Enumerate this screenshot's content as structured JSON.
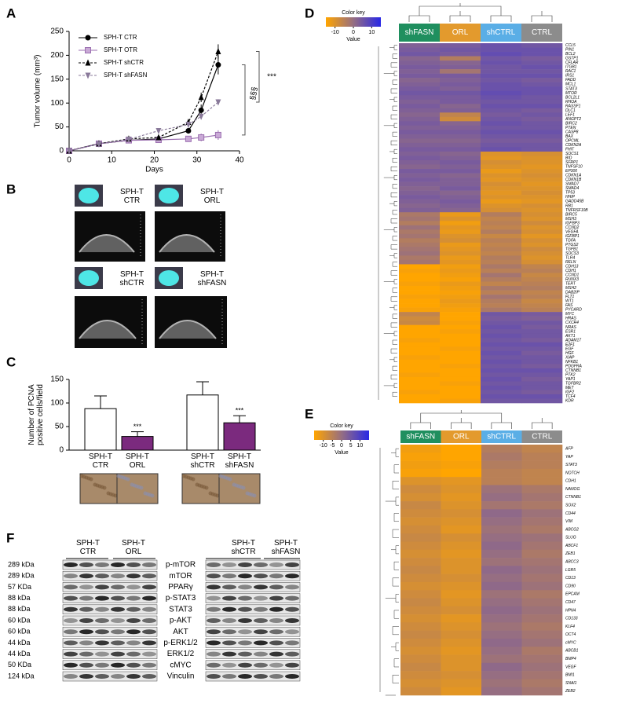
{
  "panel_labels": [
    "A",
    "B",
    "C",
    "D",
    "E",
    "F"
  ],
  "chart_data": [
    {
      "type": "line",
      "x_label": "Days",
      "y_label": "Tumor volume (mm³)",
      "x": [
        0,
        7,
        14,
        21,
        28,
        31,
        35
      ],
      "series": [
        {
          "name": "SPH-T CTR",
          "color": "#000000",
          "marker": "circle",
          "dash": false,
          "values": [
            0,
            15,
            22,
            25,
            42,
            85,
            180
          ],
          "errors": [
            0,
            3,
            4,
            4,
            6,
            12,
            20
          ]
        },
        {
          "name": "SPH-T OTR",
          "color": "#9b6fb0",
          "marker": "square",
          "dash": false,
          "values": [
            0,
            15,
            22,
            23,
            25,
            28,
            33
          ],
          "errors": [
            0,
            3,
            4,
            4,
            5,
            8,
            10
          ]
        },
        {
          "name": "SPH-T shCTR",
          "color": "#000000",
          "marker": "triangle",
          "dash": true,
          "values": [
            0,
            15,
            25,
            28,
            60,
            112,
            208
          ],
          "errors": [
            0,
            3,
            4,
            4,
            6,
            10,
            15
          ]
        },
        {
          "name": "SPH-T shFASN",
          "color": "#8a7a9a",
          "marker": "triangle-down",
          "dash": true,
          "values": [
            0,
            14,
            24,
            42,
            55,
            72,
            102
          ],
          "errors": [
            0,
            3,
            4,
            4,
            5,
            6,
            6
          ]
        }
      ],
      "xlim": [
        0,
        40
      ],
      "xticks": [
        0,
        10,
        20,
        30,
        40
      ],
      "ylim": [
        0,
        250
      ],
      "yticks": [
        0,
        50,
        100,
        150,
        200,
        250
      ],
      "annotations": [
        "§§§",
        "***"
      ]
    },
    {
      "type": "bar",
      "y_label": "Number of PCNA\npositive cells/field",
      "categories": [
        "SPH-T\nCTR",
        "SPH-T\nORL",
        "SPH-T\nshCTR",
        "SPH-T\nshFASN"
      ],
      "values": [
        88,
        29,
        117,
        58
      ],
      "errors": [
        27,
        10,
        28,
        15
      ],
      "colors": [
        "#ffffff",
        "#7b2a7e",
        "#ffffff",
        "#7b2a7e"
      ],
      "significance": [
        null,
        "***",
        null,
        "***"
      ],
      "ylim": [
        0,
        150
      ],
      "yticks": [
        0,
        50,
        100,
        150
      ]
    },
    {
      "type": "heatmap",
      "title": "Color key",
      "legend_label": "Value",
      "clim": [
        -15,
        15
      ],
      "colorbar_ticks": [
        -10,
        0,
        10
      ],
      "columns": [
        "shFASN",
        "ORL",
        "shCTRL",
        "CTRL"
      ],
      "column_colors": [
        "#1f8f5f",
        "#e39a2d",
        "#5aaee6",
        "#8c8c8c"
      ],
      "rows": [
        "CCL5",
        "PIN1",
        "BCL2",
        "GSTP1",
        "CFLAR",
        "ITGB1",
        "RAC1",
        "IRS1",
        "FADD",
        "MCL1",
        "STAT3",
        "MTOR",
        "BCL2L1",
        "RHOA",
        "RASSF1",
        "DLC1",
        "LEF1",
        "ANGPT2",
        "BIRC2",
        "PTEN",
        "CASP8",
        "BAX",
        "OPCML",
        "CDKN2A",
        "FHIT",
        "SOCS1",
        "BID",
        "SFRP1",
        "TNFSF10",
        "EP300",
        "CDKN1A",
        "CDKN1B",
        "SMAD7",
        "SMAD4",
        "TP53",
        "HHIP",
        "GADD45B",
        "RB1",
        "TNFRSF10B",
        "BIRC5",
        "MSH3",
        "IGFBP3",
        "CCND2",
        "VEGFA",
        "IGFBP1",
        "TGFA",
        "PTGS2",
        "TGFB1",
        "SOCS3",
        "TLR4",
        "RELN",
        "CDH13",
        "CDH1",
        "CCND1",
        "RUNX3",
        "TERT",
        "MSH2",
        "DAB2IP",
        "FLT1",
        "WT1",
        "FAS",
        "PYCARD",
        "MYC",
        "HRAS",
        "CXCR4",
        "NRAS",
        "ESR1",
        "AKT1",
        "ADAM17",
        "E2F1",
        "EGF",
        "HGF",
        "XIAP",
        "NFKB1",
        "PDGFRA",
        "CTNNB1",
        "PTK2",
        "YAP1",
        "TGFBR2",
        "MET",
        "IGF2",
        "TCF4",
        "KDR"
      ],
      "values": [
        [
          3,
          4,
          6,
          5
        ],
        [
          4,
          5,
          6,
          6
        ],
        [
          5,
          4,
          7,
          6
        ],
        [
          2,
          -4,
          5,
          4
        ],
        [
          3,
          2,
          6,
          5
        ],
        [
          4,
          3,
          5,
          6
        ],
        [
          3,
          -2,
          5,
          5
        ],
        [
          4,
          4,
          6,
          6
        ],
        [
          2,
          3,
          5,
          4
        ],
        [
          3,
          4,
          6,
          5
        ],
        [
          4,
          3,
          6,
          6
        ],
        [
          5,
          5,
          7,
          6
        ],
        [
          4,
          4,
          6,
          5
        ],
        [
          3,
          4,
          5,
          5
        ],
        [
          4,
          2,
          6,
          6
        ],
        [
          3,
          3,
          5,
          4
        ],
        [
          2,
          -6,
          4,
          5
        ],
        [
          3,
          -8,
          5,
          4
        ],
        [
          4,
          2,
          6,
          5
        ],
        [
          3,
          3,
          5,
          5
        ],
        [
          4,
          4,
          6,
          6
        ],
        [
          3,
          3,
          5,
          5
        ],
        [
          2,
          2,
          4,
          4
        ],
        [
          3,
          3,
          5,
          5
        ],
        [
          4,
          4,
          6,
          5
        ],
        [
          3,
          2,
          -10,
          -9
        ],
        [
          4,
          3,
          -11,
          -10
        ],
        [
          3,
          4,
          -9,
          -10
        ],
        [
          2,
          3,
          -10,
          -11
        ],
        [
          4,
          4,
          -12,
          -10
        ],
        [
          3,
          2,
          -10,
          -9
        ],
        [
          4,
          3,
          -11,
          -10
        ],
        [
          3,
          3,
          -9,
          -11
        ],
        [
          2,
          4,
          -10,
          -10
        ],
        [
          3,
          2,
          -11,
          -9
        ],
        [
          4,
          3,
          -10,
          -10
        ],
        [
          3,
          4,
          -12,
          -11
        ],
        [
          2,
          3,
          -10,
          -9
        ],
        [
          3,
          2,
          -9,
          -10
        ],
        [
          -3,
          -12,
          -4,
          -9
        ],
        [
          -2,
          -10,
          -6,
          -10
        ],
        [
          -4,
          -13,
          -5,
          -8
        ],
        [
          -1,
          -11,
          -6,
          -10
        ],
        [
          -3,
          -12,
          -4,
          -9
        ],
        [
          -2,
          -10,
          -7,
          -11
        ],
        [
          -4,
          -9,
          -5,
          -9
        ],
        [
          -3,
          -12,
          -6,
          -10
        ],
        [
          -2,
          -11,
          -5,
          -8
        ],
        [
          -1,
          -10,
          -6,
          -9
        ],
        [
          -3,
          -12,
          -4,
          -10
        ],
        [
          -2,
          -11,
          -5,
          -9
        ],
        [
          -15,
          -13,
          -3,
          -6
        ],
        [
          -14,
          -12,
          -5,
          -5
        ],
        [
          -15,
          -13,
          -2,
          -7
        ],
        [
          -15,
          -14,
          -4,
          -6
        ],
        [
          -14,
          -12,
          -6,
          -5
        ],
        [
          -15,
          -13,
          -3,
          -4
        ],
        [
          -15,
          -14,
          -5,
          -6
        ],
        [
          -14,
          -13,
          -2,
          -5
        ],
        [
          -15,
          -12,
          -4,
          -7
        ],
        [
          -15,
          -13,
          -5,
          -6
        ],
        [
          -14,
          -14,
          -3,
          -5
        ],
        [
          -6,
          -15,
          5,
          4
        ],
        [
          -8,
          -15,
          4,
          3
        ],
        [
          -7,
          -14,
          5,
          5
        ],
        [
          -15,
          -15,
          6,
          4
        ],
        [
          -15,
          -14,
          5,
          5
        ],
        [
          -15,
          -15,
          6,
          5
        ],
        [
          -14,
          -15,
          5,
          4
        ],
        [
          -15,
          -15,
          6,
          6
        ],
        [
          -15,
          -14,
          5,
          5
        ],
        [
          -15,
          -15,
          6,
          4
        ],
        [
          -14,
          -15,
          5,
          5
        ],
        [
          -15,
          -15,
          6,
          5
        ],
        [
          -15,
          -14,
          5,
          4
        ],
        [
          -15,
          -15,
          6,
          6
        ],
        [
          -14,
          -15,
          5,
          5
        ],
        [
          -15,
          -15,
          6,
          4
        ],
        [
          -15,
          -14,
          5,
          5
        ],
        [
          -15,
          -15,
          6,
          5
        ],
        [
          -14,
          -15,
          5,
          4
        ],
        [
          -15,
          -15,
          6,
          6
        ],
        [
          -15,
          -14,
          5,
          5
        ]
      ]
    },
    {
      "type": "heatmap",
      "title": "Color key",
      "legend_label": "Value",
      "clim": [
        -15,
        15
      ],
      "colorbar_ticks": [
        -10,
        -5,
        0,
        5,
        10
      ],
      "columns": [
        "shFASN",
        "ORL",
        "shCTRL",
        "CTRL"
      ],
      "column_colors": [
        "#1f8f5f",
        "#e39a2d",
        "#5aaee6",
        "#8c8c8c"
      ],
      "rows": [
        "AFP",
        "YAP",
        "STAT3",
        "NOTCH",
        "CDH1",
        "NANOG",
        "CTNNB1",
        "SOX2",
        "CD44",
        "VIM",
        "ABCG2",
        "SLUG",
        "ABCF1",
        "ZEB1",
        "ABCC3",
        "LGR5",
        "CD13",
        "CD90",
        "EPCAM",
        "CD47",
        "HPN4",
        "CD133",
        "KLF4",
        "OCT4",
        "cMYC",
        "ABCB1",
        "BMP4",
        "VEGF",
        "BMI1",
        "SNAI1",
        "ZEB2"
      ],
      "values": [
        [
          -13,
          -15,
          -4,
          -6
        ],
        [
          -14,
          -15,
          -3,
          -5
        ],
        [
          -13,
          -14,
          -4,
          -5
        ],
        [
          -14,
          -15,
          -5,
          -6
        ],
        [
          -10,
          -11,
          -5,
          -6
        ],
        [
          -8,
          -10,
          -1,
          -3
        ],
        [
          -9,
          -11,
          0,
          -2
        ],
        [
          -7,
          -10,
          -2,
          -3
        ],
        [
          -8,
          -9,
          1,
          -1
        ],
        [
          -9,
          -10,
          0,
          -2
        ],
        [
          -8,
          -11,
          -1,
          -3
        ],
        [
          -7,
          -9,
          0,
          -1
        ],
        [
          -8,
          -10,
          1,
          -2
        ],
        [
          -9,
          -11,
          0,
          -3
        ],
        [
          -8,
          -10,
          -1,
          -2
        ],
        [
          -7,
          -10,
          1,
          -1
        ],
        [
          -8,
          -9,
          0,
          -2
        ],
        [
          -9,
          -10,
          1,
          -1
        ],
        [
          -8,
          -11,
          -1,
          -3
        ],
        [
          -7,
          -10,
          0,
          -2
        ],
        [
          -8,
          -9,
          1,
          -1
        ],
        [
          -9,
          -11,
          0,
          -2
        ],
        [
          -8,
          -10,
          -1,
          -3
        ],
        [
          -7,
          -9,
          0,
          -2
        ],
        [
          -8,
          -10,
          1,
          -1
        ],
        [
          -9,
          -11,
          0,
          -3
        ],
        [
          -8,
          -10,
          -1,
          -2
        ],
        [
          -7,
          -10,
          1,
          -1
        ],
        [
          -8,
          -9,
          0,
          -2
        ],
        [
          -9,
          -10,
          -1,
          -3
        ],
        [
          -8,
          -11,
          0,
          -2
        ]
      ]
    }
  ],
  "ultrasound": {
    "labels": [
      "SPH-T\nCTR",
      "SPH-T\nORL",
      "SPH-T\nshCTR",
      "SPH-T\nshFASN"
    ]
  },
  "western": {
    "groups_left": [
      "SPH-T\nCTR",
      "SPH-T\nORL"
    ],
    "groups_right": [
      "SPH-T\nshCTR",
      "SPH-T\nshFASN"
    ],
    "rows": [
      {
        "size": "289 kDa",
        "protein": "p-mTOR"
      },
      {
        "size": "289 kDa",
        "protein": "mTOR"
      },
      {
        "size": "57 KDa",
        "protein": "PPARγ"
      },
      {
        "size": "88 kDa",
        "protein": "p-STAT3"
      },
      {
        "size": "88 kDa",
        "protein": "STAT3"
      },
      {
        "size": "60 kDa",
        "protein": "p-AKT"
      },
      {
        "size": "60 kDa",
        "protein": "AKT"
      },
      {
        "size": "44 kDa",
        "protein": "p-ERK1/2"
      },
      {
        "size": "44 kDa",
        "protein": "ERK1/2"
      },
      {
        "size": "50 KDa",
        "protein": "cMYC"
      },
      {
        "size": "124 kDa",
        "protein": "Vinculin"
      }
    ]
  }
}
